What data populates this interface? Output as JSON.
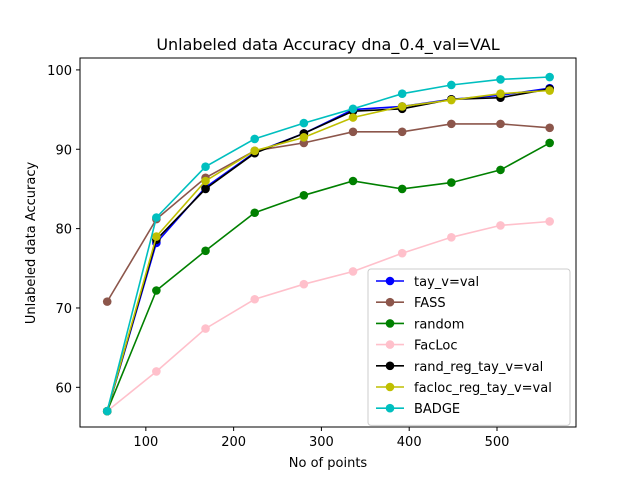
{
  "chart_data": {
    "type": "line",
    "title": "Unlabeled data Accuracy dna_0.4_val=VAL",
    "xlabel": "No of points",
    "ylabel": "Unlabeled data Accuracy",
    "xlim": [
      25,
      590
    ],
    "ylim": [
      55,
      101.5
    ],
    "xticks": [
      100,
      200,
      300,
      400,
      500
    ],
    "yticks": [
      60,
      70,
      80,
      90,
      100
    ],
    "grid": false,
    "legend_position": "lower-right",
    "x": [
      56,
      112,
      168,
      224,
      280,
      336,
      392,
      448,
      504,
      560
    ],
    "series": [
      {
        "name": "tay_v=val",
        "color": "#0000ff",
        "values": [
          57.0,
          78.2,
          85.2,
          89.6,
          92.0,
          95.0,
          95.4,
          96.3,
          96.8,
          97.7
        ]
      },
      {
        "name": "FASS",
        "color": "#8c564b",
        "values": [
          70.8,
          81.2,
          86.4,
          89.8,
          90.8,
          92.2,
          92.2,
          93.2,
          93.2,
          92.7
        ]
      },
      {
        "name": "random",
        "color": "#008000",
        "values": [
          57.0,
          72.2,
          77.2,
          82.0,
          84.2,
          86.0,
          85.0,
          85.8,
          87.4,
          90.8
        ]
      },
      {
        "name": "FacLoc",
        "color": "#ffc0cb",
        "values": [
          57.0,
          62.0,
          67.4,
          71.1,
          73.0,
          74.6,
          76.9,
          78.9,
          80.4,
          80.9
        ]
      },
      {
        "name": "rand_reg_tay_v=val",
        "color": "#000000",
        "values": [
          57.0,
          78.6,
          85.0,
          89.5,
          92.0,
          94.8,
          95.1,
          96.3,
          96.5,
          97.6
        ]
      },
      {
        "name": "facloc_reg_tay_v=val",
        "color": "#bfbf00",
        "values": [
          57.0,
          79.0,
          86.0,
          89.8,
          91.5,
          94.0,
          95.4,
          96.2,
          97.0,
          97.4
        ]
      },
      {
        "name": "BADGE",
        "color": "#00bfbf",
        "values": [
          57.0,
          81.4,
          87.8,
          91.3,
          93.3,
          95.1,
          97.0,
          98.1,
          98.8,
          99.1
        ]
      }
    ]
  }
}
